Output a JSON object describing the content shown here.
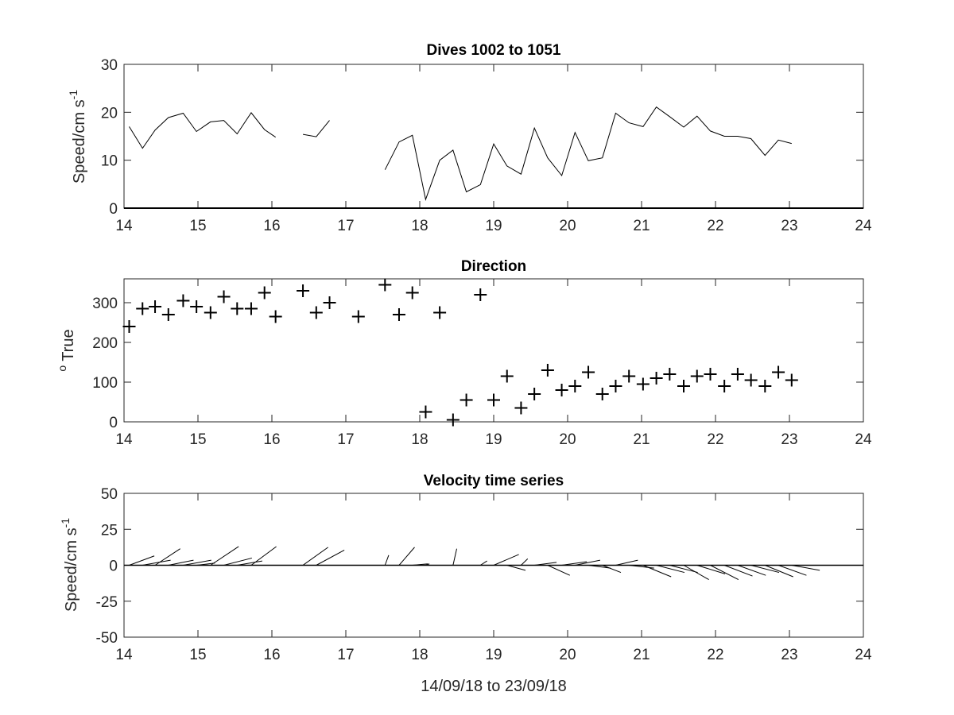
{
  "figure": {
    "xlabel": "14/09/18 to 23/09/18"
  },
  "chart_data": [
    {
      "type": "line",
      "title": "Dives 1002 to 1051",
      "ylabel_text": "Speed/cm s",
      "ylabel_sup": "-1",
      "xlim": [
        14,
        24
      ],
      "ylim": [
        0,
        30
      ],
      "x_ticks": [
        14,
        15,
        16,
        17,
        18,
        19,
        20,
        21,
        22,
        23,
        24
      ],
      "y_ticks": [
        0,
        10,
        20,
        30
      ],
      "baseline_y": 0,
      "segments": [
        {
          "x": [
            14.07,
            14.25,
            14.42,
            14.6,
            14.8,
            14.98,
            15.17,
            15.35,
            15.53,
            15.72,
            15.9,
            16.05
          ],
          "y": [
            17,
            12.5,
            16.3,
            18.9,
            19.8,
            16.0,
            18.0,
            18.3,
            15.5,
            19.9,
            16.4,
            14.8
          ]
        },
        {
          "x": [
            16.42,
            16.6,
            16.78
          ],
          "y": [
            15.4,
            14.9,
            18.3
          ]
        },
        {
          "x": [
            17.53,
            17.72,
            17.9,
            18.08,
            18.27,
            18.45,
            18.63,
            18.82,
            19.0,
            19.18,
            19.37,
            19.55,
            19.73,
            19.92,
            20.1,
            20.28,
            20.47,
            20.65,
            20.83,
            21.02,
            21.2,
            21.38,
            21.57,
            21.75,
            21.93,
            22.12,
            22.3,
            22.48,
            22.67,
            22.85,
            23.03
          ],
          "y": [
            8,
            13.8,
            15.2,
            1.8,
            10.0,
            12.1,
            3.4,
            4.9,
            13.4,
            8.8,
            7.1,
            16.7,
            10.5,
            6.8,
            15.8,
            9.9,
            10.5,
            19.8,
            17.8,
            17.0,
            21.1,
            19.1,
            16.9,
            19.2,
            16.1,
            15.0,
            15.0,
            14.5,
            11.0,
            14.2,
            13.5
          ]
        }
      ]
    },
    {
      "type": "scatter",
      "title": "Direction",
      "ylabel_sup": "o",
      "ylabel_text": "True",
      "xlim": [
        14,
        24
      ],
      "ylim": [
        0,
        360
      ],
      "x_ticks": [
        14,
        15,
        16,
        17,
        18,
        19,
        20,
        21,
        22,
        23,
        24
      ],
      "y_ticks": [
        0,
        100,
        200,
        300
      ],
      "marker": "+",
      "x": [
        14.07,
        14.25,
        14.42,
        14.6,
        14.8,
        14.98,
        15.17,
        15.35,
        15.53,
        15.72,
        15.9,
        16.05,
        16.42,
        16.6,
        16.78,
        17.17,
        17.53,
        17.72,
        17.9,
        18.08,
        18.27,
        18.45,
        18.63,
        18.82,
        19.0,
        19.18,
        19.37,
        19.55,
        19.73,
        19.92,
        20.1,
        20.28,
        20.47,
        20.65,
        20.83,
        21.02,
        21.2,
        21.38,
        21.57,
        21.75,
        21.93,
        22.12,
        22.3,
        22.48,
        22.67,
        22.85,
        23.03
      ],
      "y": [
        240,
        285,
        290,
        270,
        305,
        290,
        275,
        315,
        285,
        285,
        325,
        265,
        330,
        275,
        300,
        265,
        345,
        270,
        325,
        25,
        275,
        5,
        55,
        320,
        55,
        115,
        35,
        70,
        130,
        80,
        90,
        125,
        70,
        90,
        115,
        95,
        110,
        120,
        90,
        115,
        120,
        90,
        120,
        105,
        90,
        125,
        105
      ]
    },
    {
      "type": "quiver",
      "title": "Velocity time series",
      "ylabel_text": "Speed/cm s",
      "ylabel_sup": "-1",
      "xlim": [
        14,
        24
      ],
      "ylim": [
        -50,
        50
      ],
      "x_ticks": [
        14,
        15,
        16,
        17,
        18,
        19,
        20,
        21,
        22,
        23,
        24
      ],
      "y_ticks": [
        -50,
        -25,
        0,
        25,
        50
      ],
      "baseline_y": 0,
      "vectors": [
        {
          "x": 14.07,
          "u": 0.34,
          "v": 6.5
        },
        {
          "x": 14.25,
          "u": 0.38,
          "v": 3.5
        },
        {
          "x": 14.42,
          "u": 0.34,
          "v": 11.5
        },
        {
          "x": 14.6,
          "u": 0.34,
          "v": 3.5
        },
        {
          "x": 14.8,
          "u": 0.38,
          "v": 3.5
        },
        {
          "x": 14.98,
          "u": 0.25,
          "v": 1.5
        },
        {
          "x": 15.17,
          "u": 0.38,
          "v": 13.0
        },
        {
          "x": 15.35,
          "u": 0.38,
          "v": 5.0
        },
        {
          "x": 15.53,
          "u": 0.34,
          "v": 3.0
        },
        {
          "x": 15.72,
          "u": 0.34,
          "v": 13.0
        },
        {
          "x": 15.9,
          "u": 0.38,
          "v": 0.0
        },
        {
          "x": 16.05,
          "u": 0.25,
          "v": 0.0
        },
        {
          "x": 16.42,
          "u": 0.34,
          "v": 12.5
        },
        {
          "x": 16.6,
          "u": 0.38,
          "v": 10.5
        },
        {
          "x": 16.78,
          "u": 0.34,
          "v": 0.0
        },
        {
          "x": 17.17,
          "u": 0.3,
          "v": 0.0
        },
        {
          "x": 17.53,
          "u": 0.05,
          "v": 7.0
        },
        {
          "x": 17.72,
          "u": 0.21,
          "v": 12.5
        },
        {
          "x": 17.9,
          "u": 0.21,
          "v": 1.0
        },
        {
          "x": 18.08,
          "u": 0.05,
          "v": 1.0
        },
        {
          "x": 18.27,
          "u": 0.21,
          "v": 0.0
        },
        {
          "x": 18.45,
          "u": 0.05,
          "v": 11.5
        },
        {
          "x": 18.63,
          "u": 0.21,
          "v": 0.0
        },
        {
          "x": 18.82,
          "u": 0.09,
          "v": 3.0
        },
        {
          "x": 19.0,
          "u": 0.34,
          "v": 7.5
        },
        {
          "x": 19.18,
          "u": 0.25,
          "v": -3.5
        },
        {
          "x": 19.37,
          "u": 0.09,
          "v": 4.5
        },
        {
          "x": 19.55,
          "u": 0.3,
          "v": 2.0
        },
        {
          "x": 19.73,
          "u": 0.3,
          "v": -7.0
        },
        {
          "x": 19.92,
          "u": 0.34,
          "v": 2.5
        },
        {
          "x": 20.1,
          "u": 0.34,
          "v": 3.5
        },
        {
          "x": 20.28,
          "u": 0.3,
          "v": -2.0
        },
        {
          "x": 20.47,
          "u": 0.25,
          "v": -5.0
        },
        {
          "x": 20.65,
          "u": 0.3,
          "v": 3.5
        },
        {
          "x": 20.83,
          "u": 0.34,
          "v": -2.0
        },
        {
          "x": 21.02,
          "u": 0.38,
          "v": -8.0
        },
        {
          "x": 21.2,
          "u": 0.38,
          "v": -5.0
        },
        {
          "x": 21.38,
          "u": 0.38,
          "v": -5.0
        },
        {
          "x": 21.57,
          "u": 0.34,
          "v": -10.0
        },
        {
          "x": 21.75,
          "u": 0.38,
          "v": -6.0
        },
        {
          "x": 21.93,
          "u": 0.38,
          "v": -10.0
        },
        {
          "x": 22.12,
          "u": 0.38,
          "v": -7.5
        },
        {
          "x": 22.3,
          "u": 0.38,
          "v": -7.0
        },
        {
          "x": 22.48,
          "u": 0.38,
          "v": -5.0
        },
        {
          "x": 22.67,
          "u": 0.38,
          "v": -8.0
        },
        {
          "x": 22.85,
          "u": 0.38,
          "v": -7.0
        },
        {
          "x": 23.03,
          "u": 0.38,
          "v": -3.5
        }
      ]
    }
  ]
}
